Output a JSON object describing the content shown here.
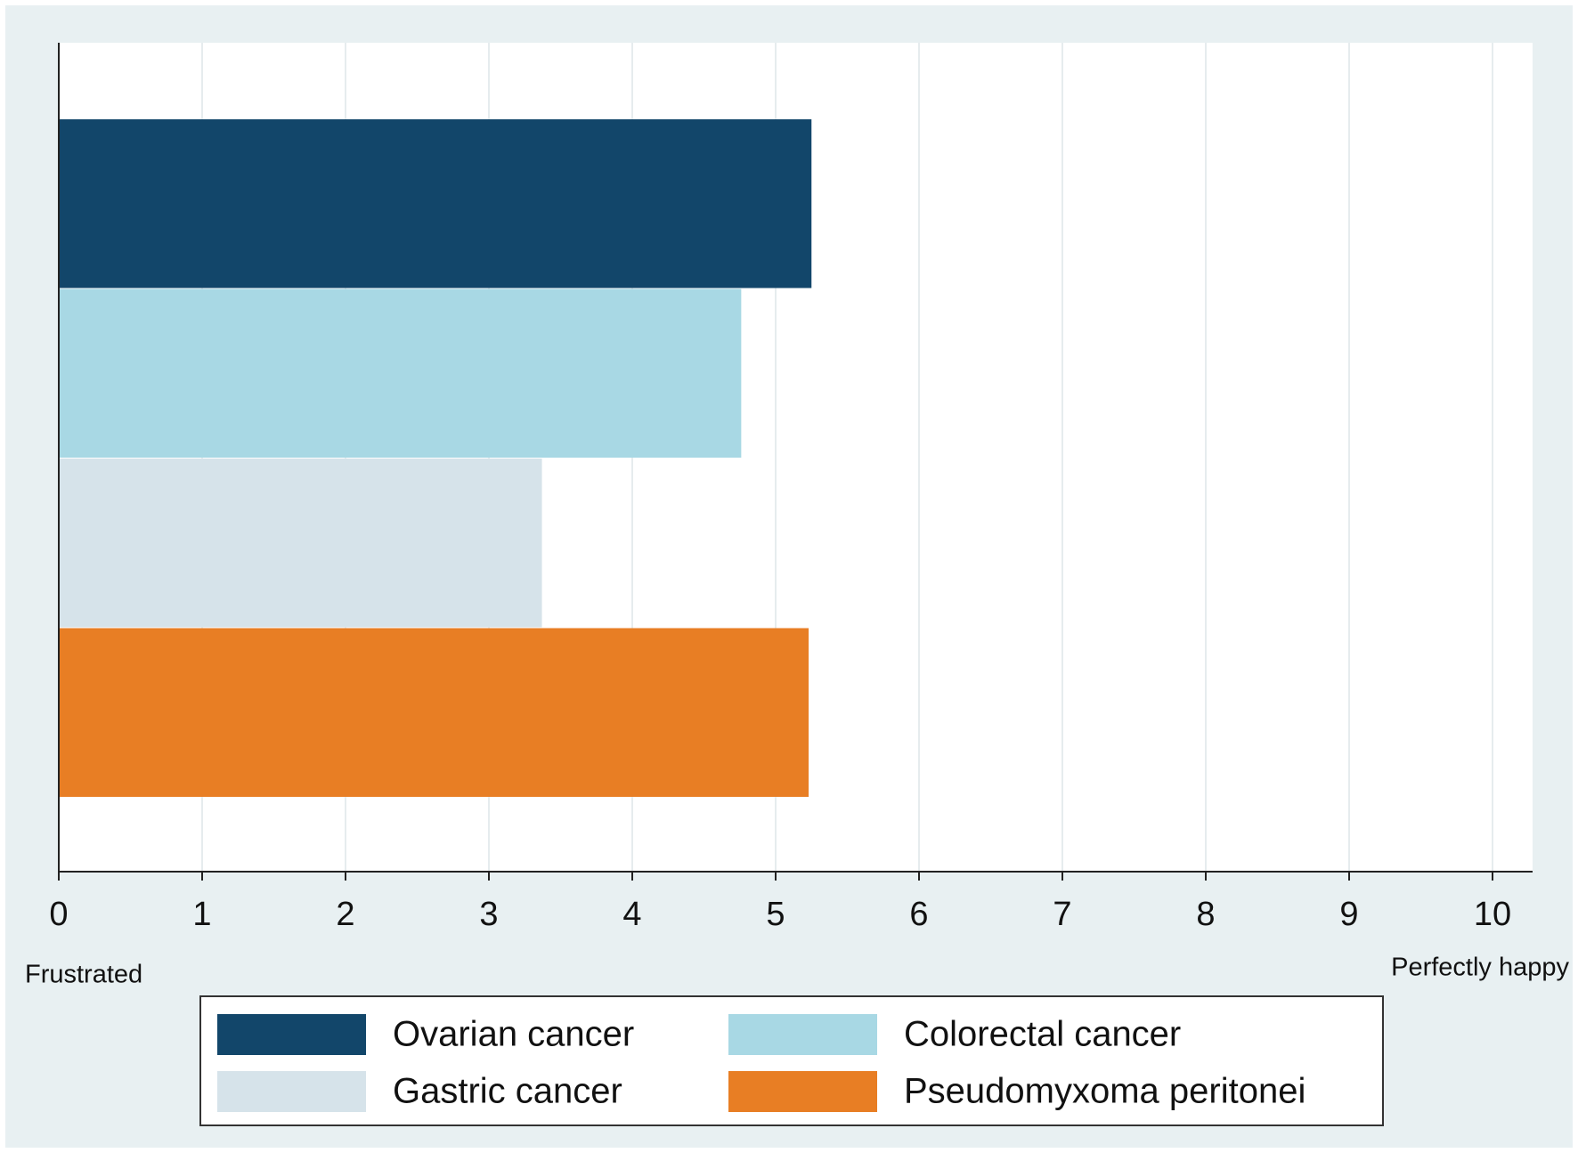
{
  "chart_data": {
    "type": "bar",
    "orientation": "horizontal",
    "series": [
      {
        "name": "Ovarian cancer",
        "color": "#12466a",
        "values": [
          5.25
        ]
      },
      {
        "name": "Colorectal cancer",
        "color": "#a8d8e4",
        "values": [
          4.76
        ]
      },
      {
        "name": "Gastric cancer",
        "color": "#d6e3ea",
        "values": [
          3.37
        ]
      },
      {
        "name": "Pseudomyxoma peritonei",
        "color": "#e87e24",
        "values": [
          5.23
        ]
      }
    ],
    "xlim": [
      0,
      10
    ],
    "xticks": [
      0,
      1,
      2,
      3,
      4,
      5,
      6,
      7,
      8,
      9,
      10
    ],
    "grid": true,
    "annotations": [
      "Frustrated",
      "Perfectly happy"
    ],
    "legend": "bottom"
  }
}
